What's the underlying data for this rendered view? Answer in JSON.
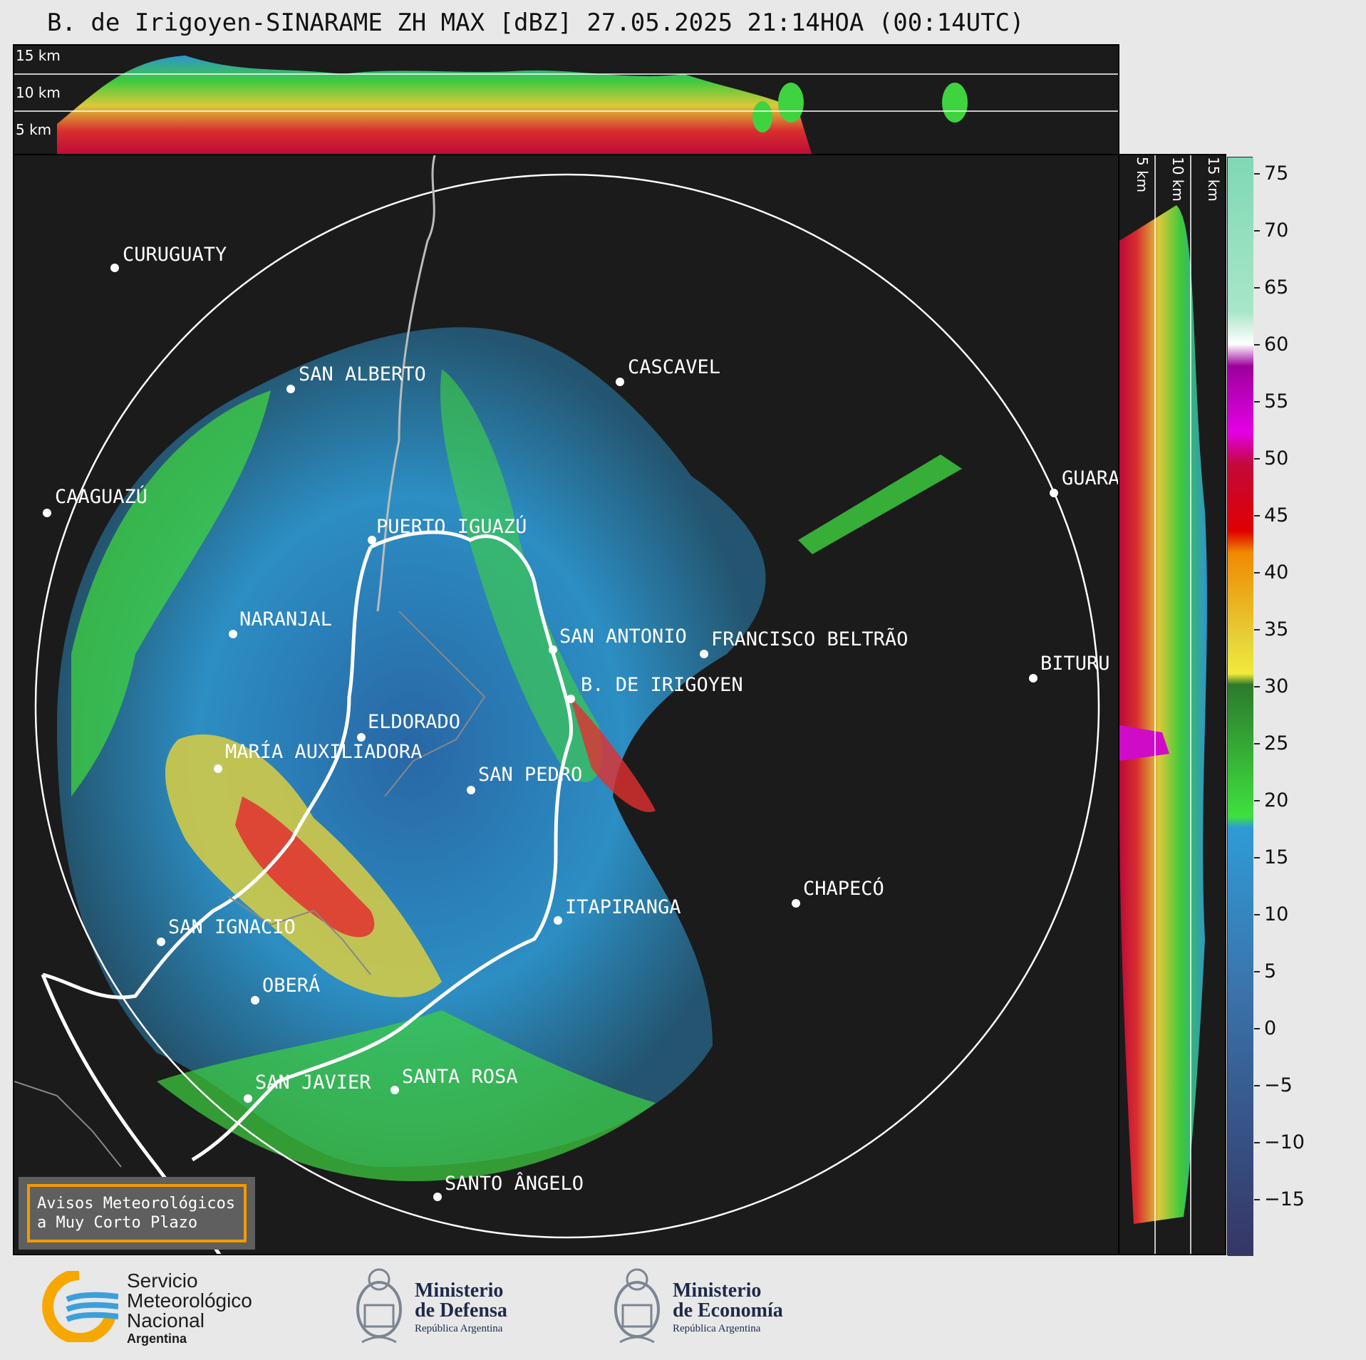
{
  "title": "B. de Irigoyen-SINARAME ZH MAX [dBZ] 27.05.2025 21:14HOA (00:14UTC)",
  "top_profile": {
    "height_labels": [
      "15 km",
      "10 km",
      "5 km"
    ]
  },
  "side_profile": {
    "height_labels": [
      "5 km",
      "10 km",
      "15 km"
    ]
  },
  "cities": [
    {
      "name": "CURUGUATY"
    },
    {
      "name": "SAN ALBERTO"
    },
    {
      "name": "CASCAVEL"
    },
    {
      "name": "CAAGUAZÚ"
    },
    {
      "name": "GUARA"
    },
    {
      "name": "PUERTO IGUAZÚ"
    },
    {
      "name": "NARANJAL"
    },
    {
      "name": "SAN ANTONIO"
    },
    {
      "name": "FRANCISCO BELTRÃO"
    },
    {
      "name": "BITURU"
    },
    {
      "name": "B. DE IRIGOYEN"
    },
    {
      "name": "ELDORADO"
    },
    {
      "name": "MARÍA AUXILIADORA"
    },
    {
      "name": "SAN PEDRO"
    },
    {
      "name": "CHAPECÓ"
    },
    {
      "name": "ITAPIRANGA"
    },
    {
      "name": "SAN IGNACIO"
    },
    {
      "name": "OBERÁ"
    },
    {
      "name": "SAN JAVIER"
    },
    {
      "name": "SANTA ROSA"
    },
    {
      "name": "SANTO ÂNGELO"
    }
  ],
  "colorbar": {
    "unit": "dBZ",
    "ticks": [
      "75",
      "70",
      "65",
      "60",
      "55",
      "50",
      "45",
      "40",
      "35",
      "30",
      "25",
      "20",
      "15",
      "10",
      "5",
      "0",
      "−5",
      "−10",
      "−15"
    ]
  },
  "legend": {
    "text": "Avisos Meteorológicos\na Muy Corto Plazo"
  },
  "footer": {
    "smn": {
      "line1": "Servicio",
      "line2": "Meteorológico",
      "line3": "Nacional",
      "line4": "Argentina"
    },
    "defensa": {
      "line1": "Ministerio",
      "line2": "de Defensa",
      "line3": "República Argentina"
    },
    "economia": {
      "line1": "Ministerio",
      "line2": "de Economía",
      "line3": "República Argentina"
    }
  },
  "colors": {
    "background": "#1b1b1b",
    "range_ring": "#ffffff",
    "border": "#ffffff",
    "accent": "#f39a00"
  }
}
